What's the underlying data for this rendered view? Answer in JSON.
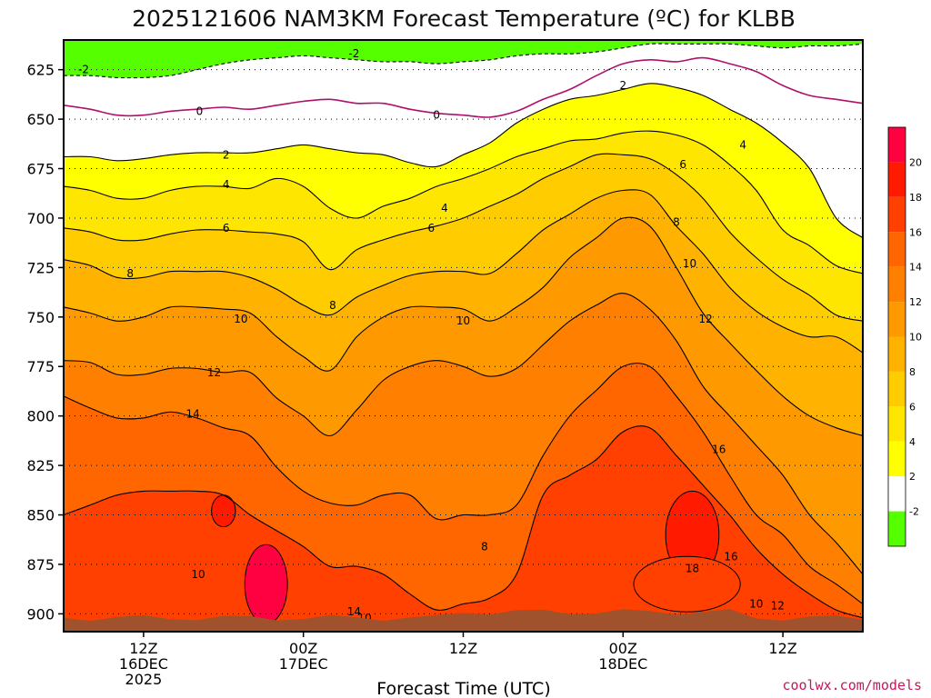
{
  "chart_data": {
    "type": "contour",
    "title": "2025121606 NAM3KM Forecast Temperature (ºC) for KLBB",
    "xlabel": "Forecast Time (UTC)",
    "ylabel": "",
    "credit": "coolwx.com/models",
    "x_range_hours": [
      0,
      60
    ],
    "y_range_mb": [
      610,
      909
    ],
    "y_ticks": [
      625,
      650,
      675,
      700,
      725,
      750,
      775,
      800,
      825,
      850,
      875,
      900
    ],
    "x_ticks": [
      {
        "hour": 6,
        "line1": "12Z",
        "line2": "16DEC",
        "line3": "2025"
      },
      {
        "hour": 18,
        "line1": "00Z",
        "line2": "17DEC",
        "line3": ""
      },
      {
        "hour": 30,
        "line1": "12Z",
        "line2": "",
        "line3": ""
      },
      {
        "hour": 42,
        "line1": "00Z",
        "line2": "18DEC",
        "line3": ""
      },
      {
        "hour": 54,
        "line1": "12Z",
        "line2": "",
        "line3": ""
      }
    ],
    "colorbar": {
      "levels": [
        -2,
        2,
        4,
        6,
        8,
        10,
        12,
        14,
        16,
        18,
        20
      ],
      "colors": [
        "#55ff00",
        "#ffffff",
        "#ffff00",
        "#ffe600",
        "#ffcc00",
        "#ffb300",
        "#ff9900",
        "#ff8000",
        "#ff6600",
        "#ff4000",
        "#ff1a00",
        "#ff0040"
      ]
    },
    "contours": [
      {
        "temp": -2,
        "p_mb": [
          628,
          628,
          629,
          629,
          628,
          625,
          622,
          620,
          619,
          618,
          619,
          620,
          621,
          621,
          622,
          621,
          620,
          618,
          617,
          617,
          616,
          614,
          612,
          612,
          612,
          612,
          613,
          614,
          613,
          613,
          612
        ]
      },
      {
        "temp": 0,
        "p_mb": [
          643,
          645,
          648,
          648,
          646,
          645,
          644,
          645,
          643,
          641,
          640,
          642,
          642,
          645,
          647,
          648,
          649,
          646,
          640,
          635,
          628,
          622,
          620,
          621,
          619,
          622,
          626,
          633,
          638,
          640,
          642
        ]
      },
      {
        "temp": 2,
        "p_mb": [
          669,
          669,
          671,
          670,
          668,
          667,
          667,
          667,
          665,
          663,
          665,
          667,
          668,
          672,
          674,
          668,
          662,
          652,
          645,
          640,
          638,
          635,
          632,
          634,
          638,
          645,
          652,
          662,
          675,
          700,
          710
        ]
      },
      {
        "temp": 4,
        "p_mb": [
          684,
          686,
          690,
          690,
          686,
          684,
          684,
          685,
          680,
          684,
          695,
          700,
          694,
          690,
          684,
          680,
          675,
          669,
          665,
          661,
          660,
          657,
          656,
          658,
          663,
          673,
          686,
          706,
          714,
          724,
          728
        ]
      },
      {
        "temp": 6,
        "p_mb": [
          705,
          707,
          711,
          711,
          708,
          706,
          706,
          707,
          708,
          712,
          726,
          716,
          711,
          707,
          704,
          700,
          694,
          688,
          680,
          674,
          668,
          668,
          670,
          678,
          690,
          707,
          720,
          731,
          739,
          749,
          752
        ]
      },
      {
        "temp": 8,
        "p_mb": [
          721,
          724,
          730,
          730,
          727,
          727,
          727,
          730,
          736,
          744,
          749,
          740,
          734,
          729,
          727,
          727,
          728,
          718,
          706,
          698,
          690,
          686,
          688,
          704,
          718,
          735,
          747,
          755,
          760,
          760,
          768
        ]
      },
      {
        "temp": 10,
        "p_mb": [
          745,
          748,
          752,
          750,
          745,
          745,
          746,
          748,
          760,
          770,
          777,
          760,
          750,
          745,
          745,
          746,
          752,
          745,
          735,
          720,
          710,
          700,
          704,
          725,
          748,
          763,
          777,
          790,
          800,
          806,
          810
        ]
      },
      {
        "temp": 12,
        "p_mb": [
          772,
          773,
          779,
          779,
          776,
          776,
          778,
          778,
          791,
          800,
          810,
          797,
          782,
          775,
          772,
          775,
          780,
          776,
          764,
          752,
          744,
          738,
          746,
          762,
          785,
          800,
          815,
          830,
          850,
          864,
          880
        ]
      },
      {
        "temp": 14,
        "p_mb": [
          790,
          796,
          801,
          801,
          798,
          801,
          806,
          810,
          826,
          838,
          844,
          845,
          840,
          840,
          852,
          850,
          850,
          845,
          820,
          800,
          787,
          775,
          775,
          790,
          808,
          830,
          850,
          860,
          876,
          885,
          895
        ]
      },
      {
        "temp": 16,
        "p_mb": [
          850,
          845,
          840,
          838,
          838,
          838,
          840,
          850,
          858,
          866,
          876,
          876,
          880,
          890,
          898,
          895,
          892,
          880,
          840,
          830,
          822,
          808,
          806,
          820,
          835,
          850,
          867,
          880,
          890,
          898,
          902
        ]
      }
    ],
    "contour_labels": [
      {
        "text": "-2",
        "hour": 1.5,
        "p_mb": 625
      },
      {
        "text": "-2",
        "hour": 21.8,
        "p_mb": 617
      },
      {
        "text": "0",
        "hour": 10.2,
        "p_mb": 646
      },
      {
        "text": "0",
        "hour": 28.0,
        "p_mb": 648
      },
      {
        "text": "2",
        "hour": 12.2,
        "p_mb": 668
      },
      {
        "text": "2",
        "hour": 42.0,
        "p_mb": 633
      },
      {
        "text": "4",
        "hour": 12.2,
        "p_mb": 683
      },
      {
        "text": "4",
        "hour": 28.6,
        "p_mb": 695
      },
      {
        "text": "4",
        "hour": 51.0,
        "p_mb": 663
      },
      {
        "text": "6",
        "hour": 12.2,
        "p_mb": 705
      },
      {
        "text": "6",
        "hour": 27.6,
        "p_mb": 705
      },
      {
        "text": "6",
        "hour": 46.5,
        "p_mb": 673
      },
      {
        "text": "8",
        "hour": 5.0,
        "p_mb": 728
      },
      {
        "text": "8",
        "hour": 20.2,
        "p_mb": 744
      },
      {
        "text": "8",
        "hour": 46.0,
        "p_mb": 702
      },
      {
        "text": "10",
        "hour": 13.3,
        "p_mb": 751
      },
      {
        "text": "10",
        "hour": 30.0,
        "p_mb": 752
      },
      {
        "text": "10",
        "hour": 47.0,
        "p_mb": 723
      },
      {
        "text": "10",
        "hour": 10.1,
        "p_mb": 880
      },
      {
        "text": "10",
        "hour": 22.6,
        "p_mb": 902
      },
      {
        "text": "10",
        "hour": 52.0,
        "p_mb": 895
      },
      {
        "text": "12",
        "hour": 11.3,
        "p_mb": 778
      },
      {
        "text": "12",
        "hour": 48.2,
        "p_mb": 751
      },
      {
        "text": "12",
        "hour": 53.6,
        "p_mb": 896
      },
      {
        "text": "14",
        "hour": 9.7,
        "p_mb": 799
      },
      {
        "text": "14",
        "hour": 21.8,
        "p_mb": 899
      },
      {
        "text": "16",
        "hour": 49.2,
        "p_mb": 817
      },
      {
        "text": "16",
        "hour": 50.1,
        "p_mb": 871
      },
      {
        "text": "18",
        "hour": 47.2,
        "p_mb": 877
      },
      {
        "text": "8",
        "hour": 31.6,
        "p_mb": 866
      }
    ]
  }
}
